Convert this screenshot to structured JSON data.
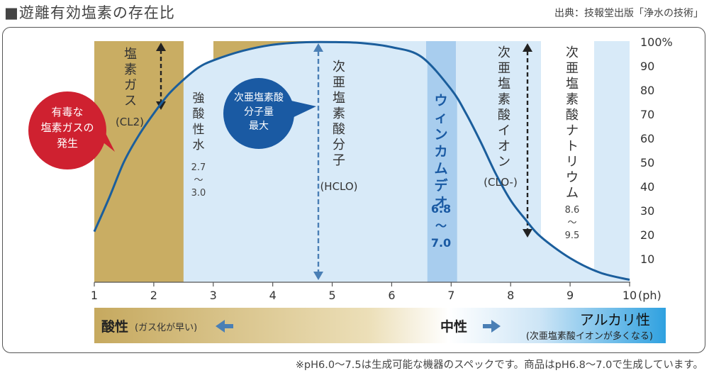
{
  "page": {
    "title": "■遊離有効塩素の存在比",
    "source": "出典：技報堂出版「浄水の技術」",
    "footnote": "※pH6.0〜7.5は生成可能な機器のスペックです。商品はpH6.8〜7.0で生成しています。"
  },
  "chart_data": {
    "type": "line",
    "title": "遊離有効塩素の存在比",
    "x_ticks": [
      "1",
      "2",
      "3",
      "4",
      "5",
      "6",
      "7",
      "8",
      "9",
      "10"
    ],
    "x_unit": "(ph)",
    "y_ticks": [
      "10",
      "20",
      "30",
      "40",
      "50",
      "60",
      "70",
      "80",
      "90",
      "100%"
    ],
    "xlim": [
      1,
      10
    ],
    "ylim": [
      0,
      100
    ],
    "series": [
      {
        "x": [
          1.0,
          1.25,
          1.5,
          1.75,
          2.0,
          2.25,
          2.5,
          2.75,
          3.0,
          3.5,
          4.0,
          4.5,
          5.0,
          5.5,
          6.0,
          6.5,
          7.0,
          7.25,
          7.5,
          7.75,
          8.0,
          8.25,
          8.5,
          9.0,
          9.5,
          10.0
        ],
        "y": [
          21,
          35,
          50,
          61,
          70,
          78,
          84,
          89,
          92,
          96,
          98.5,
          99.5,
          99.6,
          99.2,
          97.5,
          93.5,
          80,
          70,
          58,
          45,
          34,
          26,
          19,
          10,
          4,
          1
        ]
      }
    ],
    "regions": [
      {
        "name": "gas",
        "label": "塩素ガス",
        "sub": "(CL2)",
        "range": [
          1,
          2.5
        ],
        "color": "#c9ad63"
      },
      {
        "name": "strong-acid",
        "label": "強酸性水",
        "sub": "2.7 〜 3.0",
        "range": [
          2.7,
          3.0
        ],
        "color": "#ffffff"
      },
      {
        "name": "acid-band",
        "label": "",
        "range": [
          3.0,
          4.8
        ],
        "color": "#c9ad63"
      },
      {
        "name": "hclo",
        "label": "次亜塩素酸分子",
        "sub": "(HCLO)",
        "range": [
          4.8,
          6.6
        ],
        "color": "#d4e8f7"
      },
      {
        "name": "product",
        "label": "ウィンカムデオ",
        "sub": "6.8 〜 7.0",
        "range": [
          6.6,
          7.1
        ],
        "color": "#a8cdee"
      },
      {
        "name": "ion",
        "label": "次亜塩素酸イオン",
        "sub": "(CLO-)",
        "range": [
          7.1,
          8.5
        ],
        "color": "#d4e8f7"
      },
      {
        "name": "sodium",
        "label": "次亜塩素酸ナトリウム",
        "sub": "8.6 〜 9.5",
        "range": [
          8.5,
          9.4
        ],
        "color": "#ffffff"
      }
    ],
    "callouts": {
      "red": [
        "有毒な",
        "塩素ガスの",
        "発生"
      ],
      "blue": [
        "次亜塩素酸",
        "分子量",
        "最大"
      ]
    },
    "scale": {
      "acid_label": "酸性",
      "acid_note": "(ガス化が早い)",
      "neutral_label": "中性",
      "alkaline_label": "アルカリ性",
      "alkaline_note": "(次亜塩素酸イオンが多くなる)"
    },
    "colors": {
      "curve": "#1b5e9c",
      "gold": "#c9ad63",
      "light_blue": "#d4e8f7",
      "mid_blue": "#a8cdee",
      "strong_blue": "#1a5aa3",
      "red": "#cf2130",
      "arrow_blue": "#4a7fb5"
    }
  }
}
